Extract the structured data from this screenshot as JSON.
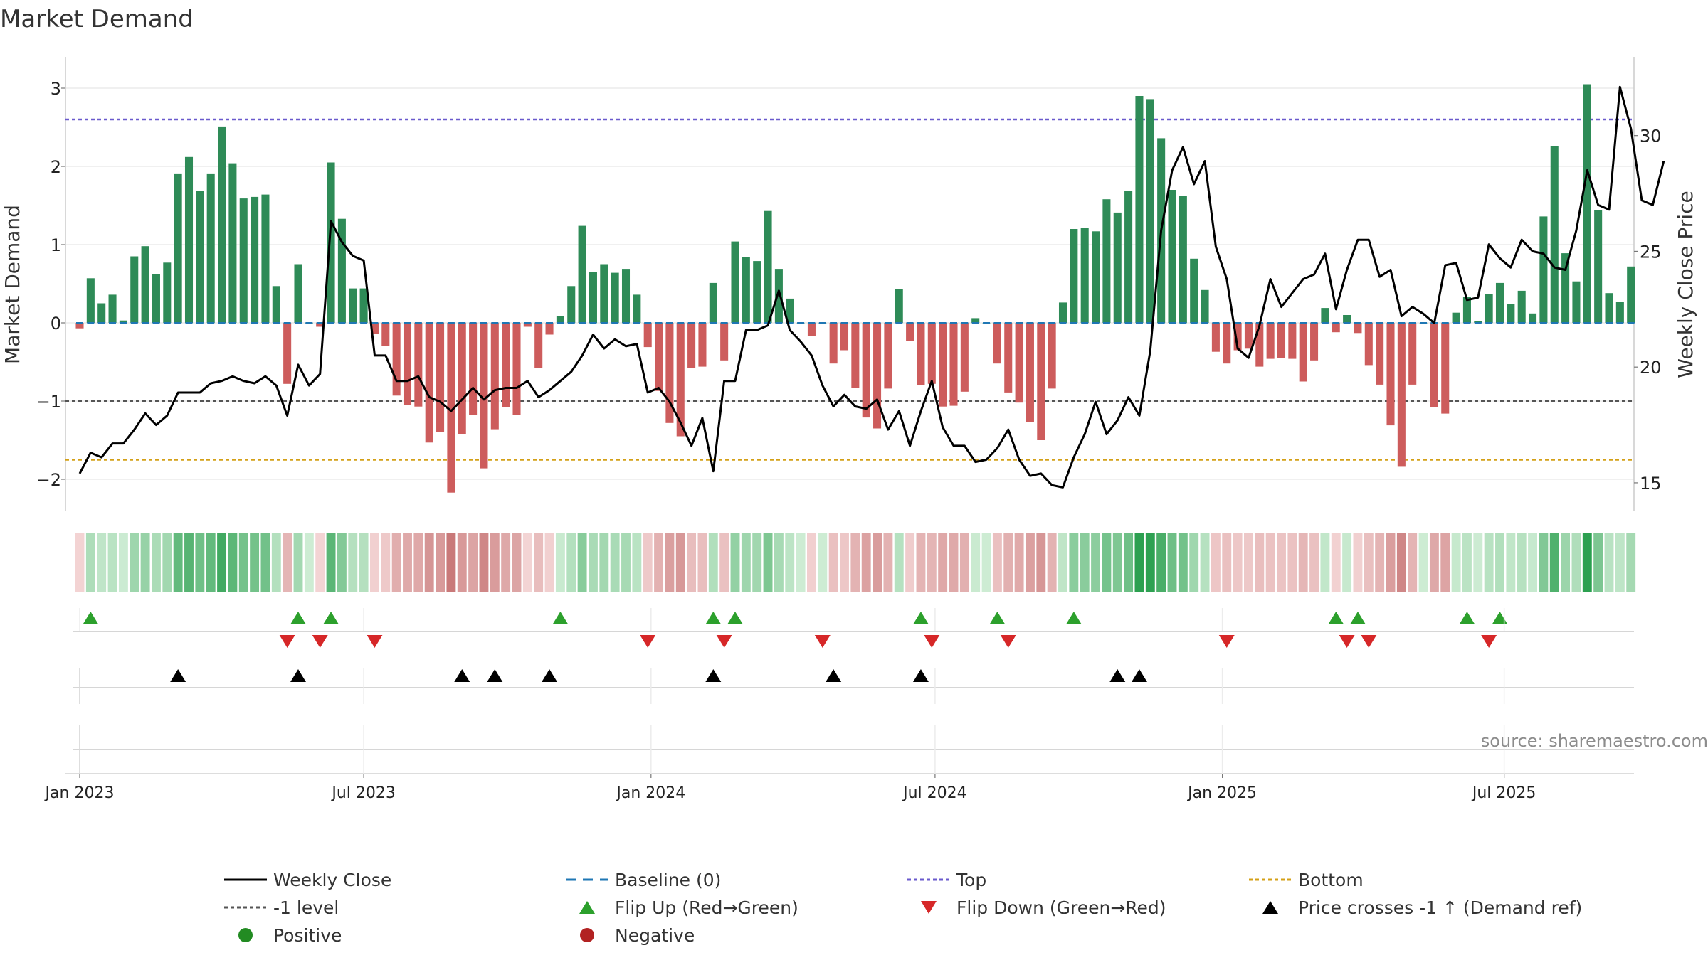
{
  "chart_data": {
    "type": "bar+line",
    "title": "Market Demand",
    "ylabel": "Market Demand",
    "y2label": "Weekly Close Price",
    "source": "source: sharemaestro.com",
    "ylim": [
      -2.4,
      3.4
    ],
    "y2lim": [
      13.8,
      33.4
    ],
    "yticks": [
      -2,
      -1,
      0,
      1,
      2,
      3
    ],
    "y2ticks": [
      15,
      20,
      25,
      30
    ],
    "ytick_labels": [
      "−2",
      "−1",
      "0",
      "1",
      "2",
      "3"
    ],
    "y2tick_labels": [
      "15",
      "20",
      "25",
      "30"
    ],
    "xticks": [
      {
        "week": 0,
        "label": "Jan 2023"
      },
      {
        "week": 26,
        "label": "Jul 2023"
      },
      {
        "week": 52.3,
        "label": "Jan 2024"
      },
      {
        "week": 78.3,
        "label": "Jul 2024"
      },
      {
        "week": 104.6,
        "label": "Jan 2025"
      },
      {
        "week": 130.4,
        "label": "Jul 2025"
      }
    ],
    "reference_lines": {
      "top": 2.6,
      "minus_one": -1,
      "bottom": -1.75,
      "baseline": 0
    },
    "demand": [
      -0.07,
      0.57,
      0.25,
      0.36,
      0.03,
      0.85,
      0.98,
      0.62,
      0.77,
      1.91,
      2.12,
      1.69,
      1.91,
      2.51,
      2.04,
      1.59,
      1.61,
      1.64,
      0.47,
      -0.78,
      0.75,
      0.0,
      -0.05,
      2.05,
      1.33,
      0.44,
      0.44,
      -0.14,
      -0.3,
      -0.93,
      -1.05,
      -1.07,
      -1.53,
      -1.4,
      -2.17,
      -1.42,
      -1.18,
      -1.86,
      -1.36,
      -1.08,
      -1.18,
      -0.05,
      -0.58,
      -0.15,
      0.09,
      0.47,
      1.24,
      0.65,
      0.75,
      0.64,
      0.69,
      0.36,
      -0.31,
      -0.87,
      -1.28,
      -1.45,
      -0.58,
      -0.56,
      0.51,
      -0.48,
      1.04,
      0.84,
      0.79,
      1.43,
      0.69,
      0.31,
      0.0,
      -0.17,
      0.0,
      -0.52,
      -0.35,
      -0.83,
      -1.21,
      -1.35,
      -0.84,
      0.43,
      -0.23,
      -0.8,
      -0.78,
      -1.07,
      -1.06,
      -0.88,
      0.06,
      0.0,
      -0.52,
      -0.89,
      -1.02,
      -1.27,
      -1.5,
      -0.84,
      0.26,
      1.2,
      1.21,
      1.17,
      1.58,
      1.41,
      1.69,
      2.9,
      2.86,
      2.36,
      1.7,
      1.62,
      0.82,
      0.42,
      -0.37,
      -0.52,
      -0.35,
      -0.33,
      -0.56,
      -0.46,
      -0.45,
      -0.46,
      -0.75,
      -0.48,
      0.19,
      -0.12,
      0.1,
      -0.13,
      -0.54,
      -0.79,
      -1.31,
      -1.84,
      -0.79,
      0.0,
      -1.08,
      -1.16,
      0.13,
      0.33,
      0.02,
      0.37,
      0.51,
      0.24,
      0.41,
      0.12,
      1.36,
      2.26,
      0.89,
      0.53,
      3.05,
      1.44,
      0.38,
      0.27,
      0.72
    ],
    "weekly_close": [
      15.4,
      16.3,
      16.1,
      16.7,
      16.7,
      17.3,
      18,
      17.5,
      17.9,
      18.9,
      18.9,
      18.9,
      19.3,
      19.4,
      19.6,
      19.4,
      19.3,
      19.6,
      19.2,
      17.9,
      20.1,
      19.2,
      19.7,
      26.3,
      25.4,
      24.8,
      24.6,
      20.5,
      20.5,
      19.4,
      19.4,
      19.6,
      18.7,
      18.5,
      18.1,
      18.6,
      19.1,
      18.6,
      19.0,
      19.1,
      19.1,
      19.4,
      18.7,
      19.0,
      19.4,
      19.8,
      20.5,
      21.4,
      20.8,
      21.2,
      20.9,
      21.0,
      18.9,
      19.1,
      18.5,
      17.6,
      16.6,
      17.8,
      15.5,
      19.4,
      19.4,
      21.6,
      21.6,
      21.8,
      23.3,
      21.6,
      21.1,
      20.5,
      19.2,
      18.3,
      18.8,
      18.3,
      18.2,
      18.6,
      17.3,
      18.1,
      16.6,
      18.1,
      19.4,
      17.4,
      16.6,
      16.6,
      15.9,
      16.0,
      16.5,
      17.3,
      16.0,
      15.3,
      15.4,
      14.9,
      14.8,
      16.1,
      17.1,
      18.5,
      17.1,
      17.7,
      18.7,
      17.9,
      20.7,
      25.9,
      28.5,
      29.5,
      27.9,
      28.9,
      25.2,
      23.8,
      20.8,
      20.4,
      21.8,
      23.8,
      22.6,
      23.2,
      23.8,
      24.0,
      24.9,
      22.5,
      24.2,
      25.5,
      25.5,
      23.9,
      24.2,
      22.2,
      22.6,
      22.3,
      21.9,
      24.4,
      24.5,
      22.9,
      23.0,
      25.3,
      24.7,
      24.3,
      25.5,
      25.0,
      24.9,
      24.3,
      24.2,
      25.9,
      28.5,
      27.0,
      26.8,
      32.1,
      30.3,
      27.2,
      27.0,
      28.9
    ],
    "flip_up_weeks": [
      1,
      20,
      23,
      44,
      58,
      60,
      77,
      84,
      91,
      115,
      117,
      127,
      130
    ],
    "flip_down_weeks": [
      19,
      22,
      27,
      52,
      59,
      68,
      78,
      85,
      105,
      116,
      118,
      129
    ],
    "price_cross_weeks": [
      9,
      20,
      35,
      38,
      43,
      58,
      69,
      77,
      95,
      97
    ],
    "legend": [
      {
        "label": "Weekly Close",
        "symbol": "line-solid",
        "color": "#000000"
      },
      {
        "label": "Baseline (0)",
        "symbol": "line-dashed",
        "color": "#1f77b4"
      },
      {
        "label": "Top",
        "symbol": "line-dotted",
        "color": "#6a5acd"
      },
      {
        "label": "Bottom",
        "symbol": "line-dotted",
        "color": "#d4a017"
      },
      {
        "label": "-1 level",
        "symbol": "line-dotted",
        "color": "#555555"
      },
      {
        "label": "Flip Up (Red→Green)",
        "symbol": "triangle-up",
        "color": "#2ca02c"
      },
      {
        "label": "Flip Down (Green→Red)",
        "symbol": "triangle-down",
        "color": "#d62728"
      },
      {
        "label": "Price crosses -1 ↑ (Demand ref)",
        "symbol": "triangle-up",
        "color": "#000000"
      },
      {
        "label": "Positive",
        "symbol": "circle",
        "color": "#228b22"
      },
      {
        "label": "Negative",
        "symbol": "circle",
        "color": "#b22222"
      }
    ]
  },
  "colors": {
    "positive_bar": "#2e8b57",
    "negative_bar": "#cd5c5c",
    "grid": "#e6e6e6",
    "axis": "#cccccc"
  }
}
